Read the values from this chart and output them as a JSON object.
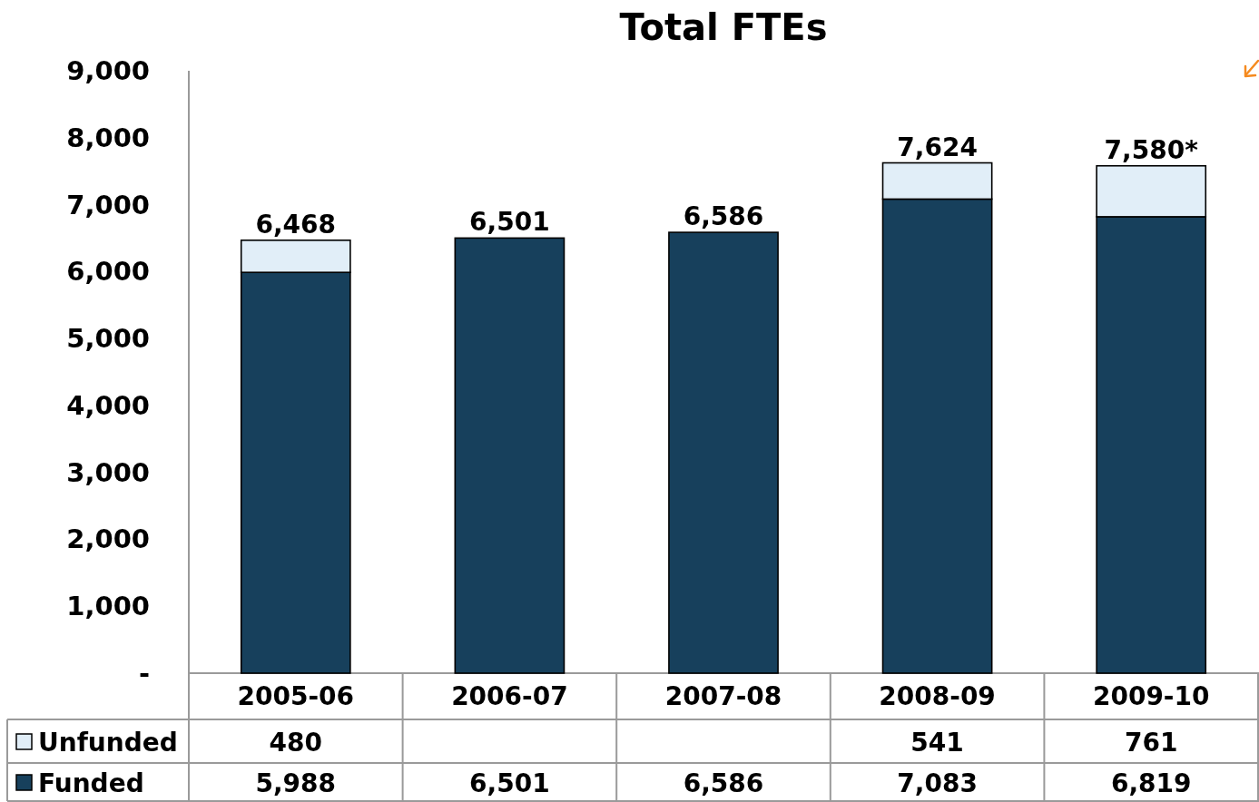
{
  "chart_data": {
    "type": "bar",
    "title": "Total FTEs",
    "categories": [
      "2005-06",
      "2006-07",
      "2007-08",
      "2008-09",
      "2009-10"
    ],
    "series": [
      {
        "name": "Funded",
        "color": "#17405c",
        "values": [
          5988,
          6501,
          6586,
          7083,
          6819
        ],
        "value_labels": [
          "5,988",
          "6,501",
          "6,586",
          "7,083",
          "6,819"
        ]
      },
      {
        "name": "Unfunded",
        "color": "#e1eef8",
        "values": [
          480,
          null,
          null,
          541,
          761
        ],
        "value_labels": [
          "480",
          null,
          null,
          "541",
          "761"
        ]
      }
    ],
    "stacked": true,
    "ylim": [
      0,
      9000
    ],
    "yticks": [
      {
        "value": 0,
        "label": "-"
      },
      {
        "value": 1000,
        "label": "1,000"
      },
      {
        "value": 2000,
        "label": "2,000"
      },
      {
        "value": 3000,
        "label": "3,000"
      },
      {
        "value": 4000,
        "label": "4,000"
      },
      {
        "value": 5000,
        "label": "5,000"
      },
      {
        "value": 6000,
        "label": "6,000"
      },
      {
        "value": 7000,
        "label": "7,000"
      },
      {
        "value": 8000,
        "label": "8,000"
      },
      {
        "value": 9000,
        "label": "9,000"
      }
    ],
    "legend": "bottom",
    "totals": [
      "6,468",
      "6,501",
      "6,586",
      "7,624",
      "7,580*"
    ]
  }
}
